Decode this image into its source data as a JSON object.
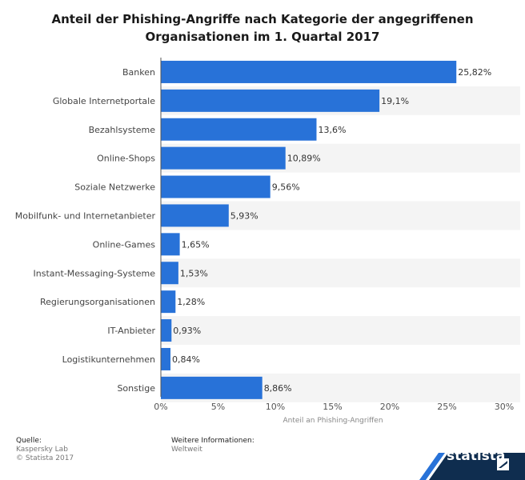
{
  "chart_data": {
    "type": "bar",
    "orientation": "horizontal",
    "title": "Anteil der Phishing-Angriffe nach Kategorie der angegriffenen Organisationen im 1. Quartal 2017",
    "title_lines": [
      "Anteil der Phishing-Angriffe nach Kategorie der angegriffenen",
      "Organisationen im 1. Quartal 2017"
    ],
    "categories": [
      "Banken",
      "Globale Internetportale",
      "Bezahlsysteme",
      "Online-Shops",
      "Soziale Netzwerke",
      "Mobilfunk- und Internetanbieter",
      "Online-Games",
      "Instant-Messaging-Systeme",
      "Regierungsorganisationen",
      "IT-Anbieter",
      "Logistikunternehmen",
      "Sonstige"
    ],
    "values": [
      25.82,
      19.1,
      13.6,
      10.89,
      9.56,
      5.93,
      1.65,
      1.53,
      1.28,
      0.93,
      0.84,
      8.86
    ],
    "value_labels": [
      "25,82%",
      "19,1%",
      "13,6%",
      "10,89%",
      "9,56%",
      "5,93%",
      "1,65%",
      "1,53%",
      "1,28%",
      "0,93%",
      "0,84%",
      "8,86%"
    ],
    "xlabel": "Anteil an Phishing-Angriffen",
    "ylabel": "",
    "xlim": [
      0,
      30
    ],
    "ticks": [
      0,
      5,
      10,
      15,
      20,
      25,
      30
    ],
    "tick_labels": [
      "0%",
      "5%",
      "10%",
      "15%",
      "20%",
      "25%",
      "30%"
    ],
    "bar_color": "#2872d8",
    "stripe_color": "#f4f4f4",
    "grid": false,
    "legend": "none"
  },
  "footer": {
    "source_heading": "Quelle:",
    "source_lines": [
      "Kaspersky Lab",
      "© Statista 2017"
    ],
    "info_heading": "Weitere Informationen:",
    "info_text": "Weltweit"
  },
  "branding": {
    "logo_text": "statista",
    "logo_icon": "statista-flag-icon",
    "banner_color": "#0f2d4f"
  }
}
